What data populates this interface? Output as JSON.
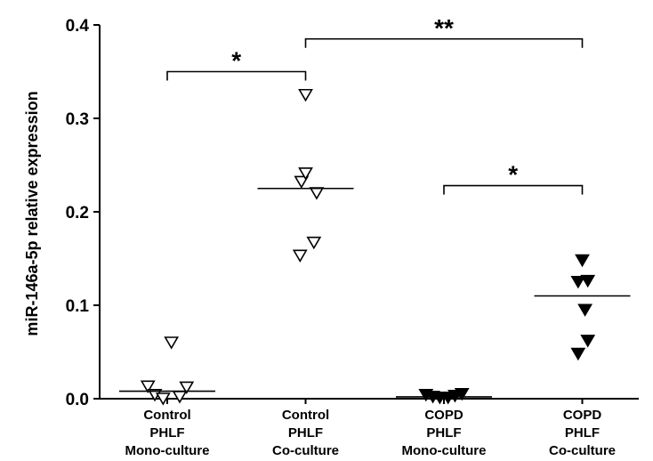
{
  "chart_data": {
    "type": "scatter",
    "title": "",
    "xlabel": "",
    "ylabel": "miR-146a-5p relative expression",
    "ylim": [
      0,
      0.4
    ],
    "yticks": [
      "0.0",
      "0.1",
      "0.2",
      "0.3",
      "0.4"
    ],
    "yticks_values": [
      0,
      0.1,
      0.2,
      0.3,
      0.4
    ],
    "grid": false,
    "categories": [
      {
        "lines": [
          "Control",
          "PHLF",
          "Mono-culture"
        ]
      },
      {
        "lines": [
          "Control",
          "PHLF",
          "Co-culture"
        ]
      },
      {
        "lines": [
          "COPD",
          "PHLF",
          "Mono-culture"
        ]
      },
      {
        "lines": [
          "COPD",
          "PHLF",
          "Co-culture"
        ]
      }
    ],
    "series": [
      {
        "marker": "open-triangle-down",
        "points": [
          [
            -0.14,
            0.013
          ],
          [
            -0.09,
            0.004
          ],
          [
            -0.03,
            0.0
          ],
          [
            0.03,
            0.06
          ],
          [
            0.09,
            0.002
          ],
          [
            0.14,
            0.012
          ]
        ],
        "median": 0.008
      },
      {
        "marker": "open-triangle-down",
        "points": [
          [
            -0.04,
            0.153
          ],
          [
            0.06,
            0.167
          ],
          [
            0.08,
            0.22
          ],
          [
            -0.03,
            0.232
          ],
          [
            0.0,
            0.241
          ],
          [
            0.0,
            0.325
          ]
        ],
        "median": 0.225
      },
      {
        "marker": "filled-triangle-down",
        "points": [
          [
            -0.13,
            0.004
          ],
          [
            -0.08,
            0.002
          ],
          [
            -0.03,
            0.001
          ],
          [
            0.03,
            0.001
          ],
          [
            0.08,
            0.003
          ],
          [
            0.13,
            0.005
          ]
        ],
        "median": 0.002
      },
      {
        "marker": "filled-triangle-down",
        "points": [
          [
            0.0,
            0.148
          ],
          [
            -0.03,
            0.125
          ],
          [
            0.04,
            0.126
          ],
          [
            0.02,
            0.095
          ],
          [
            0.04,
            0.062
          ],
          [
            -0.03,
            0.048
          ]
        ],
        "median": 0.11
      }
    ],
    "annotations": [
      {
        "label": "*",
        "from": 0,
        "to": 1,
        "y": 0.35
      },
      {
        "label": "**",
        "from": 1,
        "to": 3,
        "y": 0.385
      },
      {
        "label": "*",
        "from": 2,
        "to": 3,
        "y": 0.228
      }
    ]
  }
}
